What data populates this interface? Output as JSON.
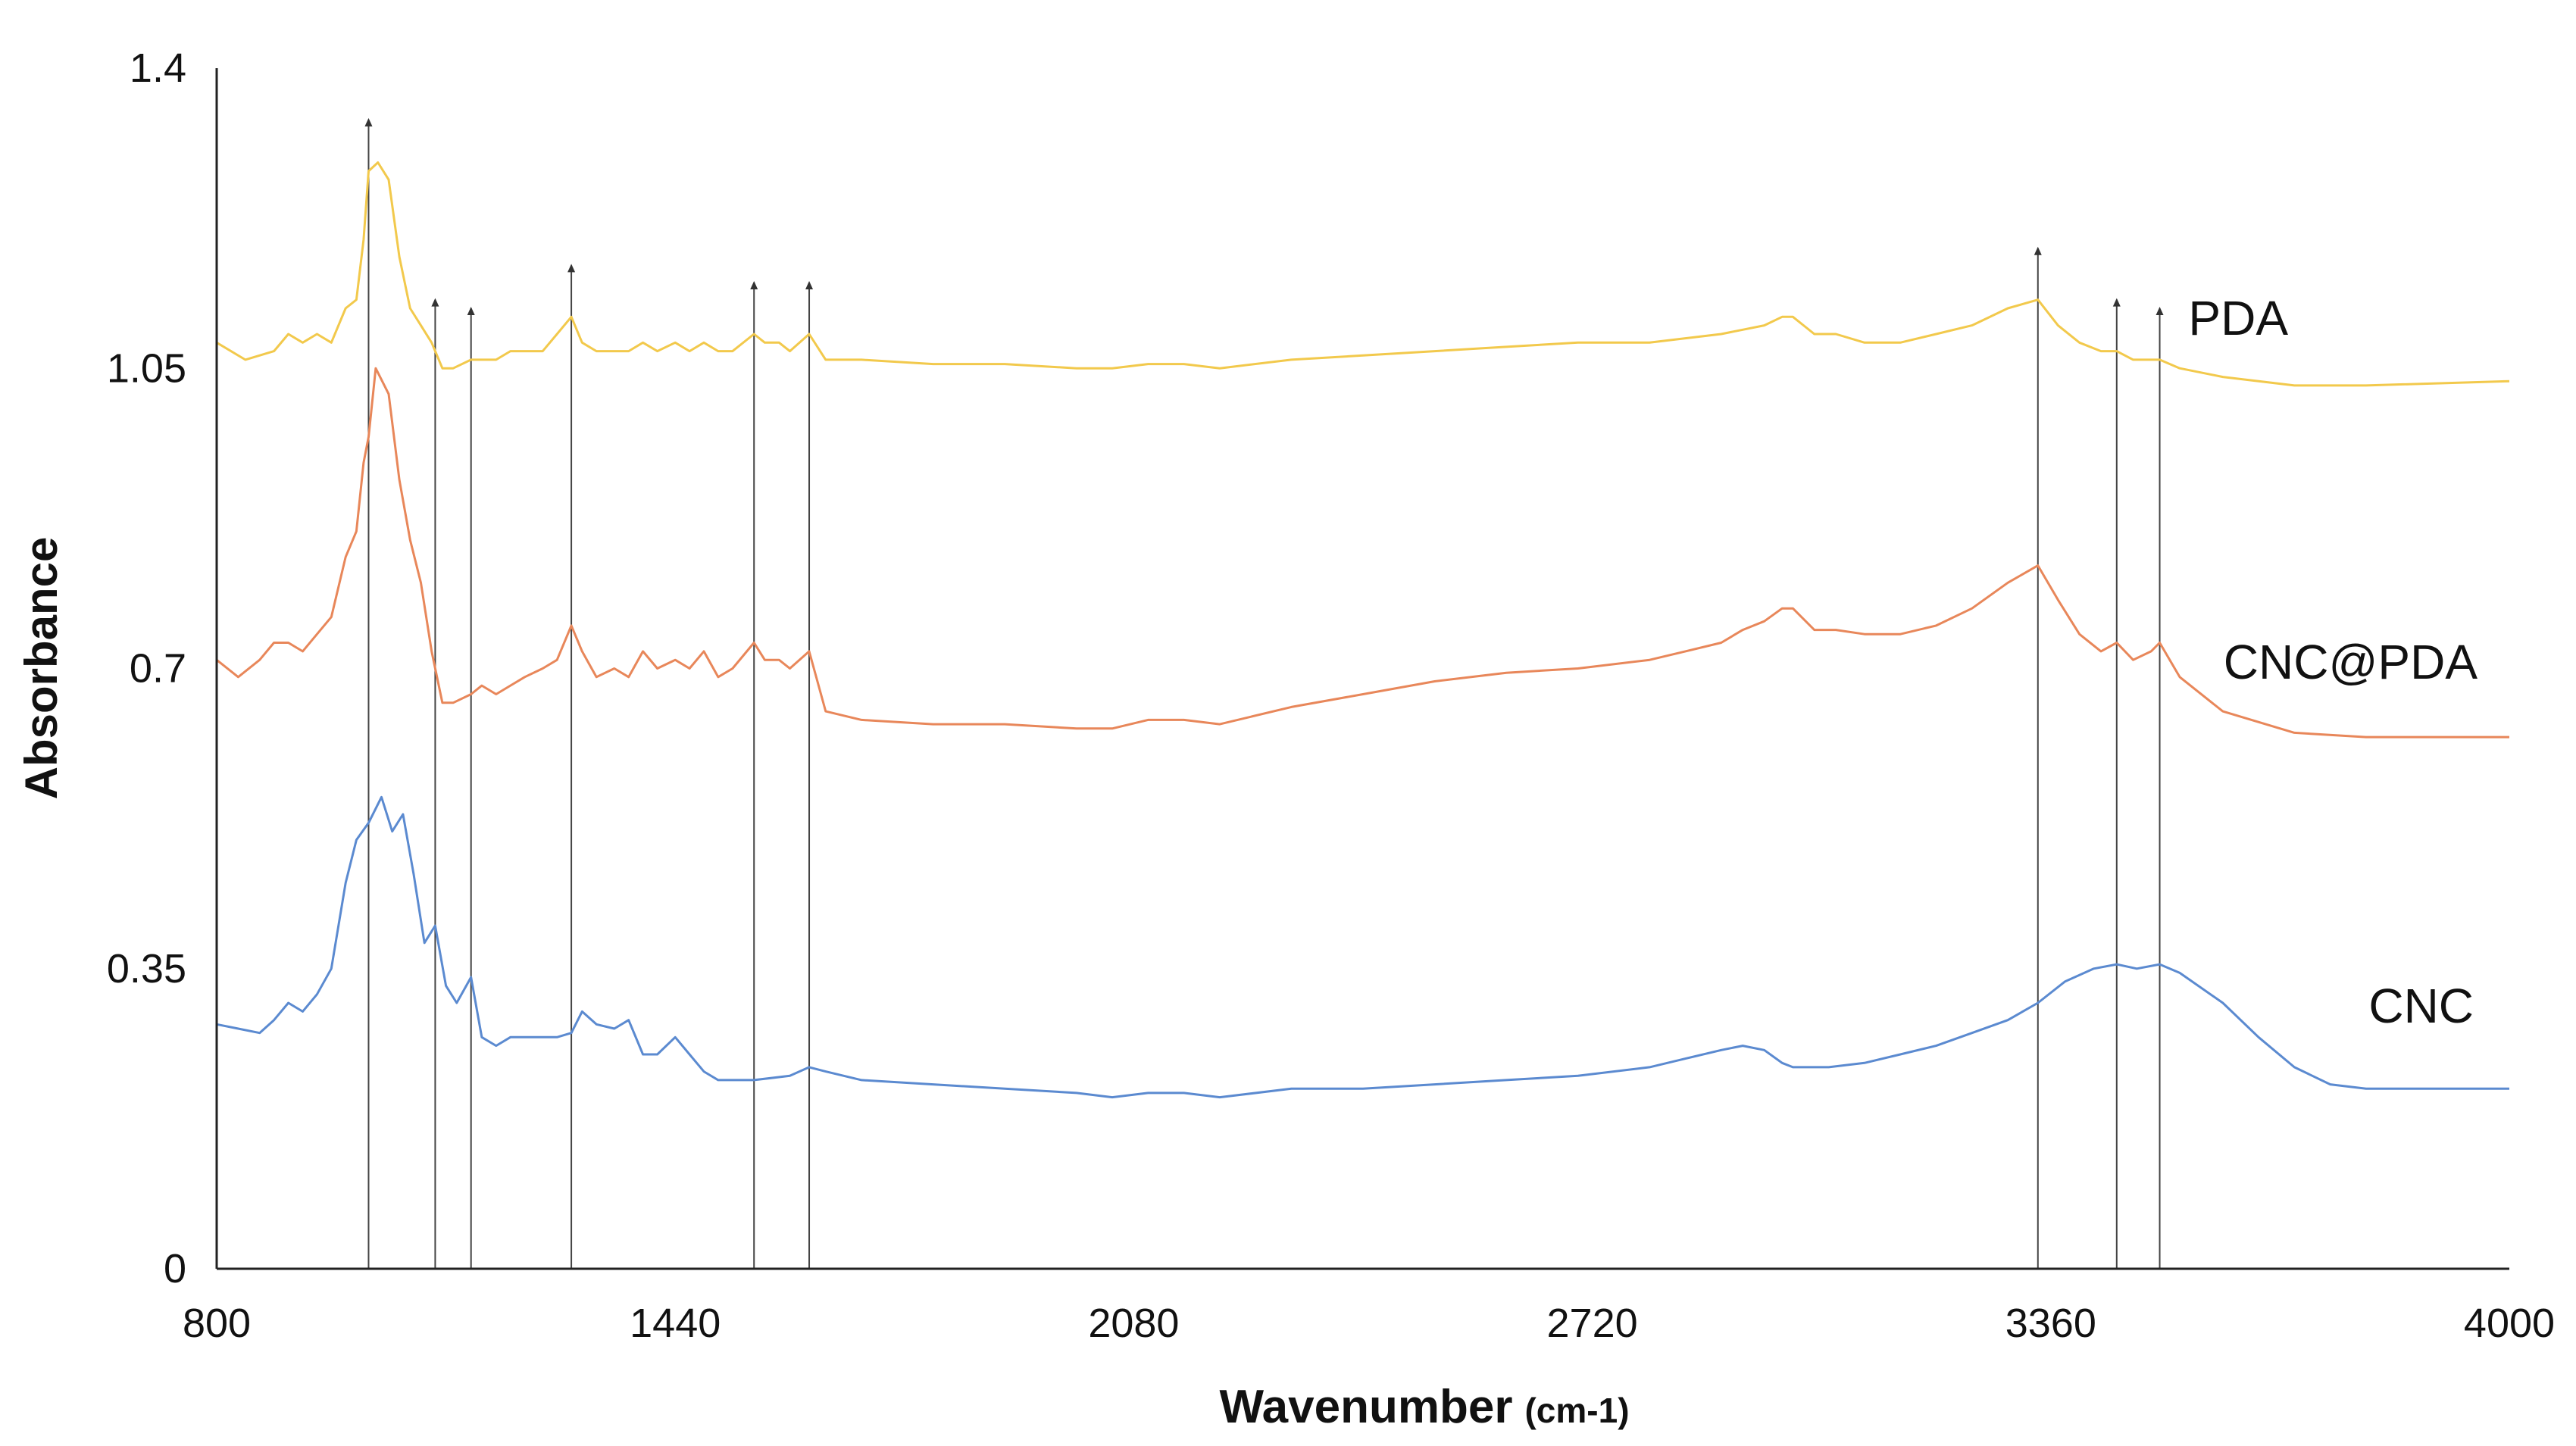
{
  "chart_data": {
    "type": "line",
    "xlabel": "Wavenumber",
    "xlabel_unit": "(cm-1)",
    "ylabel": "Absorbance",
    "xlim": [
      800,
      4000
    ],
    "ylim": [
      0,
      1.4
    ],
    "x_ticks": [
      800,
      1440,
      2080,
      2720,
      3360,
      4000
    ],
    "x_tick_labels": [
      "800",
      "1440",
      "2080",
      "2720",
      "3360",
      "4000"
    ],
    "y_ticks": [
      0,
      0.35,
      0.7,
      1.05,
      1.4
    ],
    "y_tick_labels": [
      "0",
      "0.35",
      "0.7",
      "1.05",
      "1.4"
    ],
    "grid": false,
    "legend": "series labels at right of lines",
    "marker_lines_x": [
      1012,
      1105,
      1155,
      1295,
      1550,
      1627,
      3342,
      3452,
      3512
    ],
    "series": [
      {
        "name": "PDA",
        "color": "#f2c94c",
        "points": [
          [
            800,
            1.08
          ],
          [
            840,
            1.06
          ],
          [
            880,
            1.07
          ],
          [
            900,
            1.09
          ],
          [
            920,
            1.08
          ],
          [
            940,
            1.09
          ],
          [
            960,
            1.08
          ],
          [
            980,
            1.12
          ],
          [
            995,
            1.13
          ],
          [
            1005,
            1.2
          ],
          [
            1012,
            1.28
          ],
          [
            1025,
            1.29
          ],
          [
            1040,
            1.27
          ],
          [
            1055,
            1.18
          ],
          [
            1070,
            1.12
          ],
          [
            1085,
            1.1
          ],
          [
            1100,
            1.08
          ],
          [
            1115,
            1.05
          ],
          [
            1130,
            1.05
          ],
          [
            1155,
            1.06
          ],
          [
            1170,
            1.06
          ],
          [
            1190,
            1.06
          ],
          [
            1210,
            1.07
          ],
          [
            1230,
            1.07
          ],
          [
            1255,
            1.07
          ],
          [
            1275,
            1.09
          ],
          [
            1295,
            1.11
          ],
          [
            1310,
            1.08
          ],
          [
            1330,
            1.07
          ],
          [
            1355,
            1.07
          ],
          [
            1375,
            1.07
          ],
          [
            1395,
            1.08
          ],
          [
            1415,
            1.07
          ],
          [
            1440,
            1.08
          ],
          [
            1460,
            1.07
          ],
          [
            1480,
            1.08
          ],
          [
            1500,
            1.07
          ],
          [
            1520,
            1.07
          ],
          [
            1550,
            1.09
          ],
          [
            1565,
            1.08
          ],
          [
            1585,
            1.08
          ],
          [
            1600,
            1.07
          ],
          [
            1627,
            1.09
          ],
          [
            1650,
            1.06
          ],
          [
            1700,
            1.06
          ],
          [
            1800,
            1.055
          ],
          [
            1900,
            1.055
          ],
          [
            2000,
            1.05
          ],
          [
            2050,
            1.05
          ],
          [
            2100,
            1.055
          ],
          [
            2150,
            1.055
          ],
          [
            2200,
            1.05
          ],
          [
            2300,
            1.06
          ],
          [
            2400,
            1.065
          ],
          [
            2500,
            1.07
          ],
          [
            2600,
            1.075
          ],
          [
            2700,
            1.08
          ],
          [
            2800,
            1.08
          ],
          [
            2850,
            1.085
          ],
          [
            2900,
            1.09
          ],
          [
            2930,
            1.095
          ],
          [
            2960,
            1.1
          ],
          [
            2985,
            1.11
          ],
          [
            3000,
            1.11
          ],
          [
            3030,
            1.09
          ],
          [
            3060,
            1.09
          ],
          [
            3100,
            1.08
          ],
          [
            3150,
            1.08
          ],
          [
            3200,
            1.09
          ],
          [
            3250,
            1.1
          ],
          [
            3300,
            1.12
          ],
          [
            3342,
            1.13
          ],
          [
            3370,
            1.1
          ],
          [
            3400,
            1.08
          ],
          [
            3430,
            1.07
          ],
          [
            3452,
            1.07
          ],
          [
            3475,
            1.06
          ],
          [
            3500,
            1.06
          ],
          [
            3512,
            1.06
          ],
          [
            3540,
            1.05
          ],
          [
            3600,
            1.04
          ],
          [
            3700,
            1.03
          ],
          [
            3800,
            1.03
          ],
          [
            4000,
            1.035
          ]
        ]
      },
      {
        "name": "CNC@PDA",
        "color": "#e8875a",
        "points": [
          [
            800,
            0.71
          ],
          [
            830,
            0.69
          ],
          [
            860,
            0.71
          ],
          [
            880,
            0.73
          ],
          [
            900,
            0.73
          ],
          [
            920,
            0.72
          ],
          [
            940,
            0.74
          ],
          [
            960,
            0.76
          ],
          [
            980,
            0.83
          ],
          [
            995,
            0.86
          ],
          [
            1005,
            0.94
          ],
          [
            1012,
            0.97
          ],
          [
            1022,
            1.05
          ],
          [
            1040,
            1.02
          ],
          [
            1055,
            0.92
          ],
          [
            1070,
            0.85
          ],
          [
            1085,
            0.8
          ],
          [
            1100,
            0.72
          ],
          [
            1115,
            0.66
          ],
          [
            1130,
            0.66
          ],
          [
            1155,
            0.67
          ],
          [
            1170,
            0.68
          ],
          [
            1190,
            0.67
          ],
          [
            1210,
            0.68
          ],
          [
            1230,
            0.69
          ],
          [
            1255,
            0.7
          ],
          [
            1275,
            0.71
          ],
          [
            1295,
            0.75
          ],
          [
            1310,
            0.72
          ],
          [
            1330,
            0.69
          ],
          [
            1355,
            0.7
          ],
          [
            1375,
            0.69
          ],
          [
            1395,
            0.72
          ],
          [
            1415,
            0.7
          ],
          [
            1440,
            0.71
          ],
          [
            1460,
            0.7
          ],
          [
            1480,
            0.72
          ],
          [
            1500,
            0.69
          ],
          [
            1520,
            0.7
          ],
          [
            1550,
            0.73
          ],
          [
            1565,
            0.71
          ],
          [
            1585,
            0.71
          ],
          [
            1600,
            0.7
          ],
          [
            1627,
            0.72
          ],
          [
            1650,
            0.65
          ],
          [
            1700,
            0.64
          ],
          [
            1800,
            0.635
          ],
          [
            1900,
            0.635
          ],
          [
            2000,
            0.63
          ],
          [
            2050,
            0.63
          ],
          [
            2100,
            0.64
          ],
          [
            2150,
            0.64
          ],
          [
            2200,
            0.635
          ],
          [
            2300,
            0.655
          ],
          [
            2400,
            0.67
          ],
          [
            2500,
            0.685
          ],
          [
            2600,
            0.695
          ],
          [
            2700,
            0.7
          ],
          [
            2800,
            0.71
          ],
          [
            2850,
            0.72
          ],
          [
            2900,
            0.73
          ],
          [
            2930,
            0.745
          ],
          [
            2960,
            0.755
          ],
          [
            2985,
            0.77
          ],
          [
            3000,
            0.77
          ],
          [
            3030,
            0.745
          ],
          [
            3060,
            0.745
          ],
          [
            3100,
            0.74
          ],
          [
            3150,
            0.74
          ],
          [
            3200,
            0.75
          ],
          [
            3250,
            0.77
          ],
          [
            3300,
            0.8
          ],
          [
            3342,
            0.82
          ],
          [
            3370,
            0.78
          ],
          [
            3400,
            0.74
          ],
          [
            3430,
            0.72
          ],
          [
            3452,
            0.73
          ],
          [
            3475,
            0.71
          ],
          [
            3500,
            0.72
          ],
          [
            3512,
            0.73
          ],
          [
            3540,
            0.69
          ],
          [
            3600,
            0.65
          ],
          [
            3700,
            0.625
          ],
          [
            3800,
            0.62
          ],
          [
            4000,
            0.62
          ]
        ]
      },
      {
        "name": "CNC",
        "color": "#5b8ad0",
        "points": [
          [
            800,
            0.285
          ],
          [
            830,
            0.28
          ],
          [
            860,
            0.275
          ],
          [
            880,
            0.29
          ],
          [
            900,
            0.31
          ],
          [
            920,
            0.3
          ],
          [
            940,
            0.32
          ],
          [
            960,
            0.35
          ],
          [
            980,
            0.45
          ],
          [
            995,
            0.5
          ],
          [
            1012,
            0.52
          ],
          [
            1030,
            0.55
          ],
          [
            1045,
            0.51
          ],
          [
            1060,
            0.53
          ],
          [
            1075,
            0.46
          ],
          [
            1090,
            0.38
          ],
          [
            1105,
            0.4
          ],
          [
            1120,
            0.33
          ],
          [
            1135,
            0.31
          ],
          [
            1155,
            0.34
          ],
          [
            1170,
            0.27
          ],
          [
            1190,
            0.26
          ],
          [
            1210,
            0.27
          ],
          [
            1230,
            0.27
          ],
          [
            1255,
            0.27
          ],
          [
            1275,
            0.27
          ],
          [
            1295,
            0.275
          ],
          [
            1310,
            0.3
          ],
          [
            1330,
            0.285
          ],
          [
            1355,
            0.28
          ],
          [
            1375,
            0.29
          ],
          [
            1395,
            0.25
          ],
          [
            1415,
            0.25
          ],
          [
            1440,
            0.27
          ],
          [
            1460,
            0.25
          ],
          [
            1480,
            0.23
          ],
          [
            1500,
            0.22
          ],
          [
            1550,
            0.22
          ],
          [
            1600,
            0.225
          ],
          [
            1627,
            0.235
          ],
          [
            1650,
            0.23
          ],
          [
            1700,
            0.22
          ],
          [
            1800,
            0.215
          ],
          [
            1900,
            0.21
          ],
          [
            2000,
            0.205
          ],
          [
            2050,
            0.2
          ],
          [
            2100,
            0.205
          ],
          [
            2150,
            0.205
          ],
          [
            2200,
            0.2
          ],
          [
            2300,
            0.21
          ],
          [
            2400,
            0.21
          ],
          [
            2500,
            0.215
          ],
          [
            2600,
            0.22
          ],
          [
            2700,
            0.225
          ],
          [
            2800,
            0.235
          ],
          [
            2850,
            0.245
          ],
          [
            2900,
            0.255
          ],
          [
            2930,
            0.26
          ],
          [
            2960,
            0.255
          ],
          [
            2985,
            0.24
          ],
          [
            3000,
            0.235
          ],
          [
            3050,
            0.235
          ],
          [
            3100,
            0.24
          ],
          [
            3150,
            0.25
          ],
          [
            3200,
            0.26
          ],
          [
            3250,
            0.275
          ],
          [
            3300,
            0.29
          ],
          [
            3342,
            0.31
          ],
          [
            3380,
            0.335
          ],
          [
            3420,
            0.35
          ],
          [
            3452,
            0.355
          ],
          [
            3480,
            0.35
          ],
          [
            3512,
            0.355
          ],
          [
            3540,
            0.345
          ],
          [
            3600,
            0.31
          ],
          [
            3650,
            0.27
          ],
          [
            3700,
            0.235
          ],
          [
            3750,
            0.215
          ],
          [
            3800,
            0.21
          ],
          [
            3900,
            0.21
          ],
          [
            4000,
            0.21
          ]
        ]
      }
    ]
  }
}
